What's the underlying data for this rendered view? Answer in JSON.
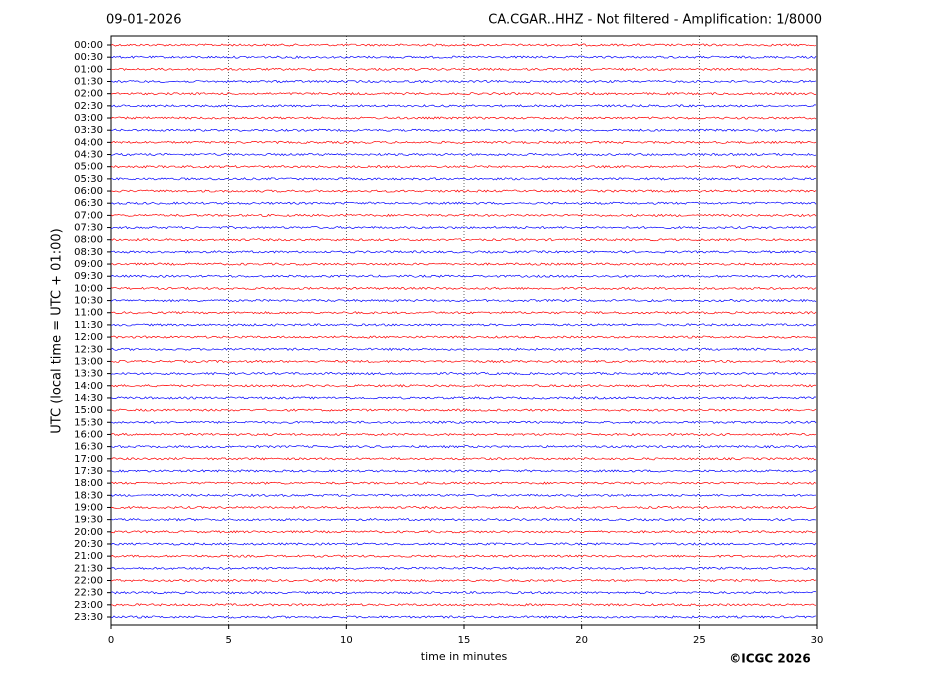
{
  "chart_data": {
    "type": "helicorder",
    "date": "09-01-2026",
    "title": "CA.CGAR..HHZ - Not filtered - Amplification: 1/8000",
    "ylabel": "UTC (local time = UTC + 01:00)",
    "xlabel": "time in minutes",
    "credit": "©ICGC 2026",
    "categories": [
      "00:00",
      "00:30",
      "01:00",
      "01:30",
      "02:00",
      "02:30",
      "03:00",
      "03:30",
      "04:00",
      "04:30",
      "05:00",
      "05:30",
      "06:00",
      "06:30",
      "07:00",
      "07:30",
      "08:00",
      "08:30",
      "09:00",
      "09:30",
      "10:00",
      "10:30",
      "11:00",
      "11:30",
      "12:00",
      "12:30",
      "13:00",
      "13:30",
      "14:00",
      "14:30",
      "15:00",
      "15:30",
      "16:00",
      "16:30",
      "17:00",
      "17:30",
      "18:00",
      "18:30",
      "19:00",
      "19:30",
      "20:00",
      "20:30",
      "21:00",
      "21:30",
      "22:00",
      "22:30",
      "23:00",
      "23:30"
    ],
    "colors": [
      "#ff0000",
      "#0000ff"
    ],
    "xlim": [
      0,
      30
    ],
    "xticks": [
      0,
      5,
      10,
      15,
      20,
      25,
      30
    ],
    "grid": true
  }
}
